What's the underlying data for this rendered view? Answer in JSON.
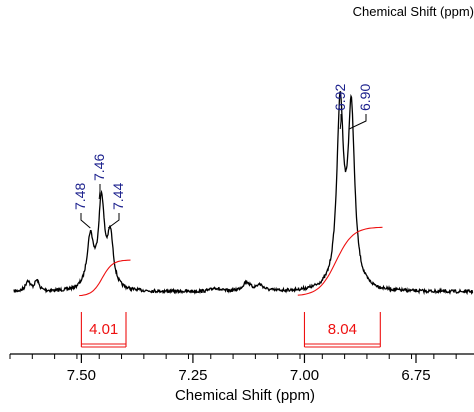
{
  "chart_data": {
    "type": "line",
    "title": "Chemical Shift (ppm)",
    "xlabel": "Chemical Shift (ppm)",
    "ylabel": "",
    "xlim": [
      7.66,
      6.62
    ],
    "x_reversed": true,
    "x_ticks": [
      7.5,
      7.25,
      7.0,
      6.75
    ],
    "x_tick_labels": [
      "7.50",
      "7.25",
      "7.00",
      "6.75"
    ],
    "x_minor_step": 0.05,
    "ylim": [
      0,
      1
    ],
    "grid": false,
    "legend": "none",
    "series": [
      {
        "peaks": [
          {
            "x": 7.62,
            "h": 0.035,
            "w": 0.006
          },
          {
            "x": 7.6,
            "h": 0.035,
            "w": 0.006
          },
          {
            "x": 7.48,
            "h": 0.17,
            "w": 0.009
          },
          {
            "x": 7.455,
            "h": 0.29,
            "w": 0.008
          },
          {
            "x": 7.435,
            "h": 0.17,
            "w": 0.008
          },
          {
            "x": 7.2,
            "h": 0.012,
            "w": 0.01
          },
          {
            "x": 7.13,
            "h": 0.03,
            "w": 0.01
          },
          {
            "x": 7.1,
            "h": 0.02,
            "w": 0.01
          },
          {
            "x": 6.92,
            "h": 0.6,
            "w": 0.009
          },
          {
            "x": 6.895,
            "h": 0.58,
            "w": 0.009
          }
        ]
      }
    ],
    "peak_labels": [
      "7.48",
      "7.46",
      "7.44",
      "6.92",
      "6.90"
    ],
    "peak_label_x": [
      7.48,
      7.46,
      7.44,
      6.92,
      6.9
    ],
    "integrals": [
      {
        "from": 7.5,
        "to": 7.4,
        "value": "4.01"
      },
      {
        "from": 7.0,
        "to": 6.83,
        "value": "8.04"
      }
    ],
    "integral_curves": [
      {
        "from": 7.505,
        "to": 7.39,
        "rise": 0.12
      },
      {
        "from": 7.015,
        "to": 6.825,
        "rise": 0.23
      }
    ],
    "colors": {
      "spectrum": "#000000",
      "integral": "#ee1111",
      "peak_label": "#1a1f8c",
      "axis": "#000000"
    }
  }
}
